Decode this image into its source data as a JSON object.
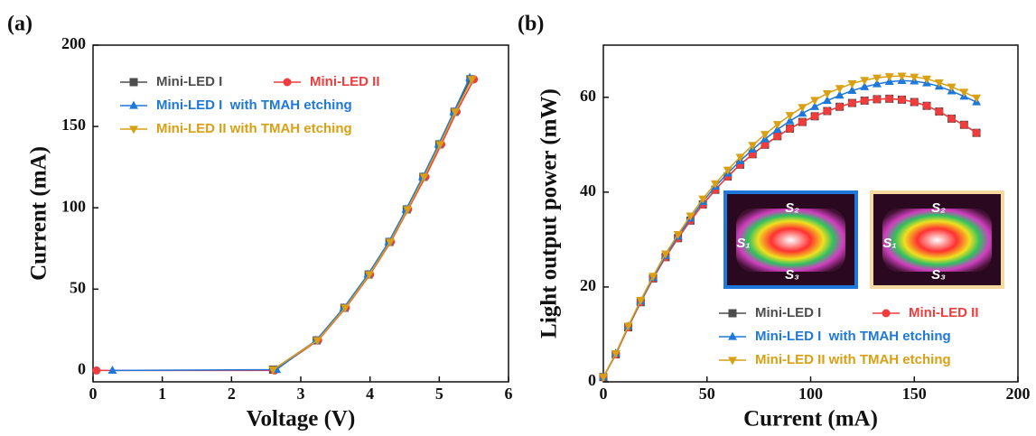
{
  "chart_data": [
    {
      "type": "line",
      "panel_label": "(a)",
      "xlabel": "Voltage (V)",
      "ylabel": "Current (mA)",
      "xlim": [
        0,
        6
      ],
      "ylim": [
        -7,
        200
      ],
      "xticks": [
        0,
        1,
        2,
        3,
        4,
        5,
        6
      ],
      "yticks": [
        0,
        50,
        100,
        150,
        200
      ],
      "legend": "upper left",
      "series": [
        {
          "name": "Mini-LED I",
          "color": "#4d4d4d",
          "marker": "square",
          "x": [
            2.6,
            3.23,
            3.63,
            3.98,
            4.28,
            4.53,
            4.77,
            5.0,
            5.22,
            5.45
          ],
          "values": [
            0.5,
            18.5,
            38.5,
            59,
            79,
            99,
            119,
            139,
            159,
            179
          ]
        },
        {
          "name": "Mini-LED II",
          "color": "#f03c3c",
          "marker": "circle",
          "x": [
            0.05,
            2.62,
            3.25,
            3.65,
            4.0,
            4.3,
            4.55,
            4.8,
            5.03,
            5.25,
            5.5
          ],
          "values": [
            0,
            0,
            18.5,
            38.5,
            59,
            79,
            99,
            119,
            139,
            159,
            179
          ]
        },
        {
          "name": "Mini-LED I  with TMAH etching",
          "color": "#1e78dc",
          "marker": "triangle-up",
          "x": [
            0.28,
            2.65,
            3.22,
            3.62,
            3.97,
            4.27,
            4.52,
            4.76,
            4.99,
            5.21,
            5.44
          ],
          "values": [
            0,
            0.5,
            18.5,
            38.5,
            59,
            79,
            99,
            119,
            139,
            159,
            180
          ]
        },
        {
          "name": "Mini-LED II with TMAH etching",
          "color": "#d9a014",
          "marker": "triangle-down",
          "x": [
            2.6,
            3.24,
            3.64,
            3.99,
            4.29,
            4.54,
            4.78,
            5.01,
            5.23,
            5.47
          ],
          "values": [
            0.5,
            18.5,
            38.5,
            59,
            79,
            99,
            119,
            139,
            159,
            179
          ]
        }
      ]
    },
    {
      "type": "line",
      "panel_label": "(b)",
      "xlabel": "Current (mA)",
      "ylabel": "Light output power (mW)",
      "xlim": [
        0,
        200
      ],
      "ylim": [
        0,
        71
      ],
      "xticks": [
        0,
        50,
        100,
        150,
        200
      ],
      "yticks": [
        0,
        20,
        40,
        60
      ],
      "legend": "lower right",
      "x": [
        0,
        6,
        12,
        18,
        24,
        30,
        36,
        42,
        48,
        54,
        60,
        66,
        72,
        78,
        84,
        90,
        96,
        102,
        108,
        114,
        120,
        126,
        132,
        138,
        144,
        150,
        156,
        162,
        168,
        174,
        180
      ],
      "series": [
        {
          "name": "Mini-LED I",
          "color": "#4d4d4d",
          "marker": "square",
          "values": [
            1,
            5.8,
            11.5,
            16.8,
            21.8,
            26.3,
            30.3,
            34,
            37.4,
            40.5,
            43.3,
            45.8,
            48,
            50,
            51.8,
            53.4,
            54.8,
            56,
            57.1,
            58,
            58.8,
            59.3,
            59.6,
            59.7,
            59.5,
            59,
            58.2,
            57,
            55.5,
            54.2,
            52.5
          ]
        },
        {
          "name": "Mini-LED II",
          "color": "#f03c3c",
          "marker": "circle",
          "values": [
            1,
            5.8,
            11.5,
            16.8,
            21.8,
            26.3,
            30.3,
            34,
            37.4,
            40.5,
            43.3,
            45.8,
            48,
            50,
            51.8,
            53.4,
            54.8,
            56,
            57.1,
            58,
            58.8,
            59.3,
            59.6,
            59.7,
            59.5,
            59,
            58.2,
            57,
            55.5,
            54.2,
            52.5
          ]
        },
        {
          "name": "Mini-LED I  with TMAH etching",
          "color": "#1e78dc",
          "marker": "triangle-up",
          "values": [
            1,
            6,
            11.7,
            17,
            22,
            26.6,
            30.7,
            34.5,
            38,
            41.2,
            44,
            46.6,
            49,
            51.2,
            53.2,
            55,
            56.6,
            58,
            59.3,
            60.4,
            61.4,
            62.2,
            62.8,
            63.3,
            63.5,
            63.4,
            63,
            62.3,
            61.3,
            60.2,
            59
          ]
        },
        {
          "name": "Mini-LED II with TMAH etching",
          "color": "#d9a014",
          "marker": "triangle-down",
          "values": [
            1,
            6,
            11.8,
            17.2,
            22.3,
            27,
            31.1,
            35,
            38.6,
            41.8,
            44.7,
            47.4,
            49.9,
            52.2,
            54.3,
            56.2,
            57.9,
            59.4,
            60.8,
            61.9,
            62.9,
            63.6,
            64.1,
            64.4,
            64.5,
            64.3,
            63.9,
            63.1,
            62.2,
            61.1,
            59.9
          ]
        }
      ],
      "insets": [
        {
          "border": "#1e78dc",
          "labels": [
            "S₂",
            "S₁",
            "S₃"
          ]
        },
        {
          "border": "#f5d9a0",
          "labels": [
            "S₂",
            "S₁",
            "S₃"
          ]
        }
      ]
    }
  ]
}
